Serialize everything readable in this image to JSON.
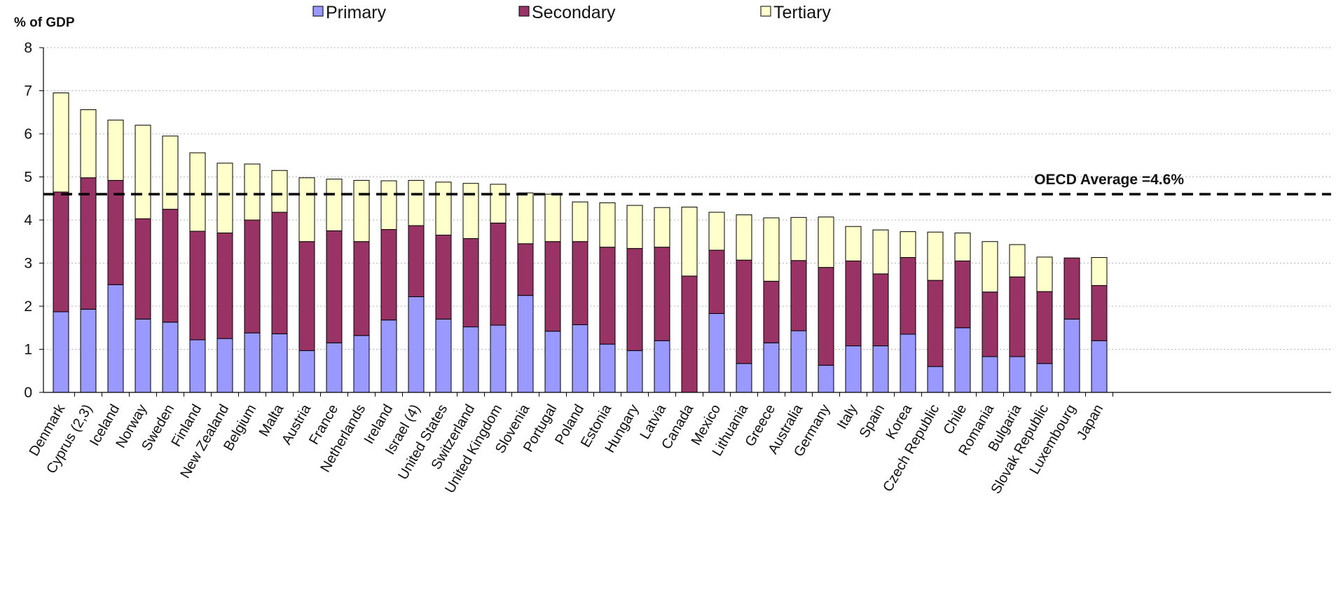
{
  "chart_data": {
    "type": "bar",
    "stacked": true,
    "ylabel": "% of GDP",
    "ylim": [
      0,
      8
    ],
    "yticks": [
      0,
      1,
      2,
      3,
      4,
      5,
      6,
      7,
      8
    ],
    "grid": "horizontal dotted",
    "legend_position": "top",
    "reference_line": {
      "label": "OECD Average =4.6%",
      "value": 4.6,
      "style": "dashed"
    },
    "categories": [
      "Denmark",
      "Cyprus (2,3)",
      "Iceland",
      "Norway",
      "Sweden",
      "Finland",
      "New Zealand",
      "Belgium",
      "Malta",
      "Austria",
      "France",
      "Netherlands",
      "Ireland",
      "Israel (4)",
      "United States",
      "Switzerland",
      "United Kingdom",
      "Slovenia",
      "Portugal",
      "Poland",
      "Estonia",
      "Hungary",
      "Latvia",
      "Canada",
      "Mexico",
      "Lithuania",
      "Greece",
      "Australia",
      "Germany",
      "Italy",
      "Spain",
      "Korea",
      "Czech Republic",
      "Chile",
      "Romania",
      "Bulgaria",
      "Slovak Republic",
      "Luxembourg",
      "Japan"
    ],
    "series": [
      {
        "name": "Primary",
        "color": "#9999ff",
        "values": [
          1.87,
          1.93,
          2.5,
          1.7,
          1.63,
          1.22,
          1.25,
          1.38,
          1.36,
          0.97,
          1.15,
          1.32,
          1.68,
          2.22,
          1.7,
          1.52,
          1.56,
          2.25,
          1.42,
          1.57,
          1.12,
          0.97,
          1.2,
          0,
          1.83,
          0.67,
          1.15,
          1.43,
          0.63,
          1.08,
          1.08,
          1.35,
          0.6,
          1.5,
          0.83,
          0.83,
          0.67,
          1.7,
          1.2
        ]
      },
      {
        "name": "Secondary",
        "color": "#993366",
        "values": [
          2.78,
          3.05,
          2.42,
          2.33,
          2.62,
          2.52,
          2.45,
          2.62,
          2.82,
          2.53,
          2.6,
          2.18,
          2.1,
          1.65,
          1.95,
          2.05,
          2.37,
          1.2,
          2.08,
          1.93,
          2.25,
          2.37,
          2.17,
          2.7,
          1.47,
          2.4,
          1.43,
          1.63,
          2.27,
          1.97,
          1.67,
          1.78,
          2.0,
          1.55,
          1.5,
          1.85,
          1.67,
          1.42,
          1.28
        ]
      },
      {
        "name": "Tertiary",
        "color": "#ffffcc",
        "values": [
          2.3,
          1.58,
          1.4,
          2.17,
          1.7,
          1.82,
          1.62,
          1.3,
          0.97,
          1.48,
          1.2,
          1.42,
          1.13,
          1.05,
          1.23,
          1.28,
          0.9,
          1.18,
          1.1,
          0.92,
          1.03,
          1.0,
          0.92,
          1.6,
          0.88,
          1.05,
          1.47,
          1.0,
          1.17,
          0.8,
          1.02,
          0.6,
          1.12,
          0.65,
          1.17,
          0.75,
          0.8,
          0,
          0.65
        ]
      }
    ]
  }
}
